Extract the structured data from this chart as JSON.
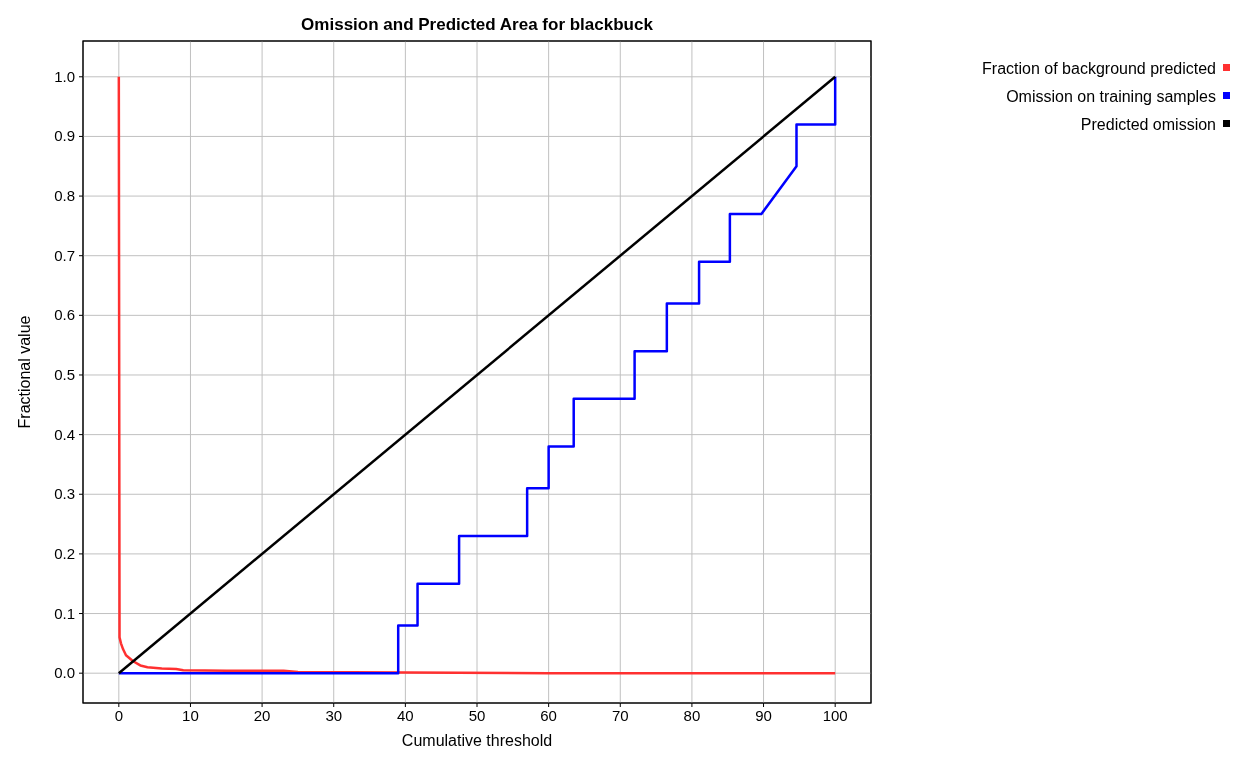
{
  "chart_data": {
    "type": "line",
    "title": "Omission and Predicted Area for blackbuck",
    "xlabel": "Cumulative threshold",
    "ylabel": "Fractional value",
    "xlim": [
      -5,
      105
    ],
    "xticks": [
      0,
      10,
      20,
      30,
      40,
      50,
      60,
      70,
      80,
      90,
      100
    ],
    "ylim": [
      -0.05,
      1.06
    ],
    "yticks": [
      {
        "value": 0,
        "label": "0.0"
      },
      {
        "value": 0.1,
        "label": "0.1"
      },
      {
        "value": 0.2,
        "label": "0.2"
      },
      {
        "value": 0.3,
        "label": "0.3"
      },
      {
        "value": 0.4,
        "label": "0.4"
      },
      {
        "value": 0.5,
        "label": "0.5"
      },
      {
        "value": 0.6,
        "label": "0.6"
      },
      {
        "value": 0.7,
        "label": "0.7"
      },
      {
        "value": 0.8,
        "label": "0.8"
      },
      {
        "value": 0.9,
        "label": "0.9"
      },
      {
        "value": 1,
        "label": "1.0"
      }
    ],
    "grid": true,
    "legend": "top right",
    "marker": "none",
    "line_style": "solid",
    "series": [
      {
        "name": "Fraction of background predicted",
        "color": "#ff3030",
        "x": [
          0,
          0.1,
          0.3,
          0.6,
          1,
          2,
          3,
          4,
          6,
          8,
          9,
          15,
          23,
          25,
          40,
          60,
          80,
          100
        ],
        "values": [
          1,
          0.06,
          0.05,
          0.04,
          0.03,
          0.02,
          0.013,
          0.01,
          0.008,
          0.007,
          0.005,
          0.004,
          0.004,
          0.002,
          0.001,
          0,
          0,
          0
        ]
      },
      {
        "name": "Omission on training samples",
        "color": "#0000ff",
        "x": [
          0,
          39,
          39,
          41.7,
          41.7,
          47.5,
          47.5,
          57,
          57,
          60,
          60,
          63.5,
          63.5,
          72,
          72,
          76.5,
          76.5,
          81,
          81,
          85.3,
          85.3,
          89.7,
          94.6,
          94.6,
          100,
          100
        ],
        "values": [
          0,
          0,
          0.08,
          0.08,
          0.15,
          0.15,
          0.23,
          0.23,
          0.31,
          0.31,
          0.38,
          0.38,
          0.46,
          0.46,
          0.54,
          0.54,
          0.62,
          0.62,
          0.69,
          0.69,
          0.77,
          0.77,
          0.85,
          0.92,
          0.92,
          1
        ]
      },
      {
        "name": "Predicted omission",
        "color": "#000000",
        "x": [
          0,
          100
        ],
        "values": [
          0,
          1
        ]
      }
    ]
  }
}
